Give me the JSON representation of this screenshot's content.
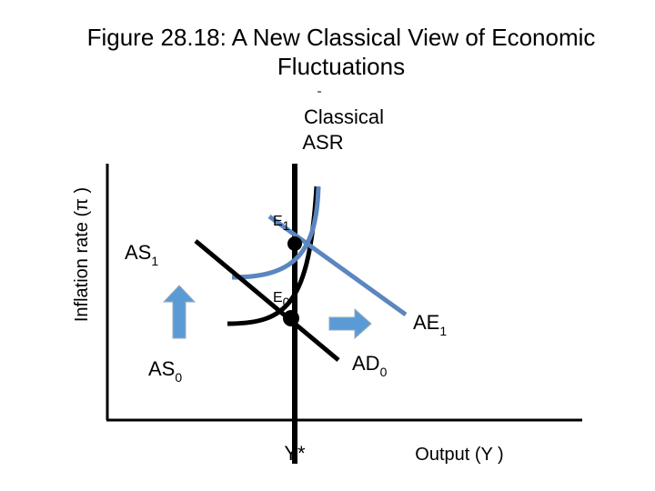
{
  "title_lines": [
    "Figure 28.18: A New Classical View of Economic",
    "Fluctuations"
  ],
  "y_axis_label": "Inflation rate (π )",
  "x_axis_label": "Output (Y )",
  "potential_output_label": "Y*",
  "curve_label": [
    "Classical",
    "ASR"
  ],
  "points": [
    {
      "text": "E",
      "sub": "1"
    },
    {
      "text": "E",
      "sub": "0"
    }
  ],
  "curves": {
    "as1": {
      "text": "AS",
      "sub": "1"
    },
    "as0": {
      "text": "AS",
      "sub": "0"
    },
    "ae1": {
      "text": "AE",
      "sub": "1"
    },
    "ad0": {
      "text": "AD",
      "sub": "0"
    }
  }
}
